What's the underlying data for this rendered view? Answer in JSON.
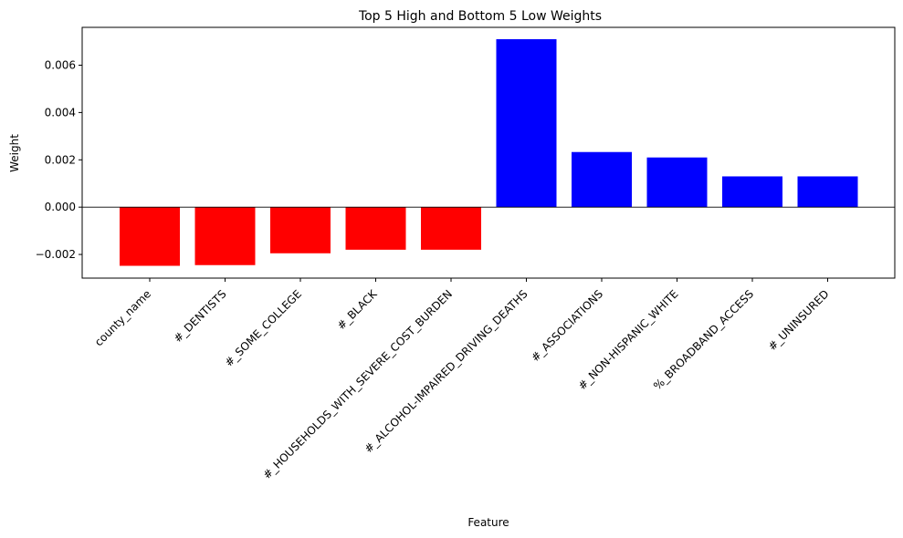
{
  "chart_data": {
    "type": "bar",
    "title": "Top 5 High and Bottom 5 Low Weights",
    "xlabel": "Feature",
    "ylabel": "Weight",
    "categories": [
      "county_name",
      "#_DENTISTS",
      "#_SOME_COLLEGE",
      "#_BLACK",
      "#_HOUSEHOLDS_WITH_SEVERE_COST_BURDEN",
      "#_ALCOHOL-IMPAIRED_DRIVING_DEATHS",
      "#_ASSOCIATIONS",
      "#_NON-HISPANIC_WHITE",
      "%_BROADBAND_ACCESS",
      "#_UNINSURED"
    ],
    "values": [
      -0.00248,
      -0.00245,
      -0.00195,
      -0.0018,
      -0.0018,
      0.0071,
      0.00233,
      0.0021,
      0.0013,
      0.0013
    ],
    "bar_colors": [
      "#ff0000",
      "#ff0000",
      "#ff0000",
      "#ff0000",
      "#ff0000",
      "#0000ff",
      "#0000ff",
      "#0000ff",
      "#0000ff",
      "#0000ff"
    ],
    "ylim": [
      -0.003,
      0.0076
    ],
    "yticks": [
      -0.002,
      0.0,
      0.002,
      0.004,
      0.006
    ],
    "ytick_labels": [
      "−0.002",
      "0.000",
      "0.002",
      "0.004",
      "0.006"
    ],
    "zero_line": true,
    "grid": false
  }
}
